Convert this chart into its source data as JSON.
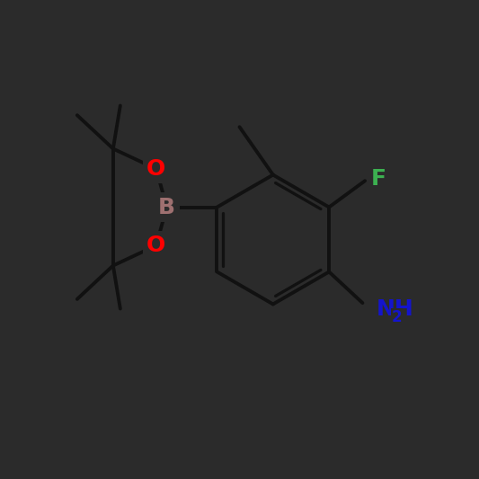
{
  "background_color": "#2b2b2b",
  "bond_color": "#111111",
  "atom_colors": {
    "O": "#ff0000",
    "B": "#9e7070",
    "F": "#3cb050",
    "N": "#1414cd",
    "C": "#111111"
  },
  "figsize": [
    5.33,
    5.33
  ],
  "dpi": 100,
  "bond_lw": 2.8,
  "label_fontsize": 18,
  "sub_fontsize": 12
}
